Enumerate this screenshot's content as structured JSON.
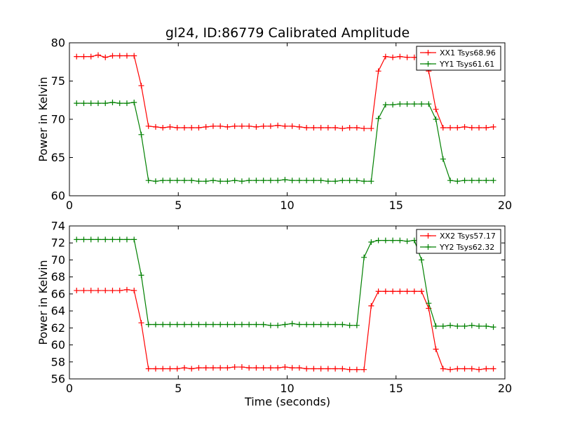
{
  "chart_data": {
    "type": "line",
    "title": "gl24, ID:86779 Calibrated Amplitude",
    "xlabel": "Time (seconds)",
    "legend_position": "top-right",
    "grid": false,
    "x": [
      0.33,
      0.66,
      0.99,
      1.32,
      1.65,
      1.98,
      2.31,
      2.64,
      2.97,
      3.3,
      3.63,
      3.96,
      4.29,
      4.62,
      4.95,
      5.28,
      5.61,
      5.94,
      6.27,
      6.6,
      6.93,
      7.26,
      7.59,
      7.92,
      8.25,
      8.58,
      8.91,
      9.24,
      9.57,
      9.9,
      10.23,
      10.56,
      10.89,
      11.22,
      11.55,
      11.88,
      12.21,
      12.54,
      12.87,
      13.2,
      13.53,
      13.86,
      14.19,
      14.52,
      14.85,
      15.18,
      15.51,
      15.84,
      16.17,
      16.5,
      16.83,
      17.16,
      17.49,
      17.82,
      18.15,
      18.48,
      18.81,
      19.14,
      19.47
    ],
    "panels": [
      {
        "ylabel": "Power in Kelvin",
        "xlim": [
          0,
          20
        ],
        "ylim": [
          60,
          80
        ],
        "xticks": [
          "0",
          "5",
          "10",
          "15",
          "20"
        ],
        "yticks": [
          "60",
          "65",
          "70",
          "75",
          "80"
        ],
        "series": [
          {
            "name": "XX1 Tsys68.96",
            "color": "#ff0000",
            "values": [
              78.2,
              78.2,
              78.2,
              78.4,
              78.1,
              78.3,
              78.3,
              78.3,
              78.3,
              74.4,
              69.1,
              69.0,
              68.9,
              69.0,
              68.9,
              68.9,
              68.9,
              68.9,
              69.0,
              69.1,
              69.1,
              69.0,
              69.1,
              69.1,
              69.1,
              69.0,
              69.1,
              69.1,
              69.2,
              69.1,
              69.1,
              69.0,
              68.9,
              68.9,
              68.9,
              68.9,
              68.9,
              68.8,
              68.9,
              68.9,
              68.8,
              68.8,
              76.3,
              78.2,
              78.1,
              78.2,
              78.1,
              78.1,
              78.1,
              76.3,
              71.3,
              68.9,
              68.9,
              68.9,
              69.0,
              68.9,
              68.9,
              68.9,
              69.0
            ],
            "x_index_shift": 0
          },
          {
            "name": "YY1 Tsys61.61",
            "color": "#008000",
            "values": [
              72.1,
              72.1,
              72.1,
              72.1,
              72.1,
              72.2,
              72.1,
              72.1,
              72.2,
              68.0,
              62.0,
              61.9,
              62.0,
              62.0,
              62.0,
              62.0,
              62.0,
              61.9,
              61.9,
              62.0,
              61.9,
              61.9,
              62.0,
              61.9,
              62.0,
              62.0,
              62.0,
              62.0,
              62.0,
              62.1,
              62.0,
              62.0,
              62.0,
              62.0,
              62.0,
              61.9,
              61.9,
              62.0,
              62.0,
              62.0,
              61.9,
              61.9,
              70.1,
              71.9,
              71.9,
              72.0,
              72.0,
              72.0,
              72.0,
              72.0,
              70.0,
              64.8,
              62.0,
              61.9,
              62.0,
              62.0,
              62.0,
              62.0,
              62.0
            ],
            "x_index_shift": 0
          }
        ]
      },
      {
        "ylabel": "Power in Kelvin",
        "xlim": [
          0,
          20
        ],
        "ylim": [
          56,
          74
        ],
        "xticks": [
          "0",
          "5",
          "10",
          "15",
          "20"
        ],
        "yticks": [
          "56",
          "58",
          "60",
          "62",
          "64",
          "66",
          "68",
          "70",
          "72",
          "74"
        ],
        "series": [
          {
            "name": "XX2 Tsys57.17",
            "color": "#ff0000",
            "values": [
              66.4,
              66.4,
              66.4,
              66.4,
              66.4,
              66.4,
              66.4,
              66.5,
              66.4,
              62.6,
              57.2,
              57.2,
              57.2,
              57.2,
              57.2,
              57.3,
              57.2,
              57.3,
              57.3,
              57.3,
              57.3,
              57.3,
              57.4,
              57.4,
              57.3,
              57.3,
              57.3,
              57.3,
              57.3,
              57.4,
              57.3,
              57.3,
              57.2,
              57.2,
              57.2,
              57.2,
              57.2,
              57.2,
              57.1,
              57.1,
              57.1,
              64.6,
              66.3,
              66.3,
              66.3,
              66.3,
              66.3,
              66.3,
              66.3,
              64.3,
              59.5,
              57.2,
              57.1,
              57.2,
              57.2,
              57.2,
              57.1,
              57.2,
              57.2
            ],
            "x_index_shift": 0
          },
          {
            "name": "YY2 Tsys62.32",
            "color": "#008000",
            "values": [
              72.4,
              72.4,
              72.4,
              72.4,
              72.4,
              72.4,
              72.4,
              72.4,
              72.4,
              68.2,
              62.4,
              62.4,
              62.4,
              62.4,
              62.4,
              62.4,
              62.4,
              62.4,
              62.4,
              62.4,
              62.4,
              62.4,
              62.4,
              62.4,
              62.4,
              62.4,
              62.4,
              62.3,
              62.3,
              62.4,
              62.5,
              62.4,
              62.4,
              62.4,
              62.4,
              62.4,
              62.4,
              62.4,
              62.3,
              62.3,
              70.3,
              72.1,
              72.3,
              72.3,
              72.3,
              72.3,
              72.2,
              72.3,
              70.0,
              64.9,
              62.2,
              62.2,
              62.3,
              62.2,
              62.2,
              62.3,
              62.2,
              62.2,
              62.1
            ],
            "x_index_shift": 0
          }
        ]
      }
    ]
  }
}
